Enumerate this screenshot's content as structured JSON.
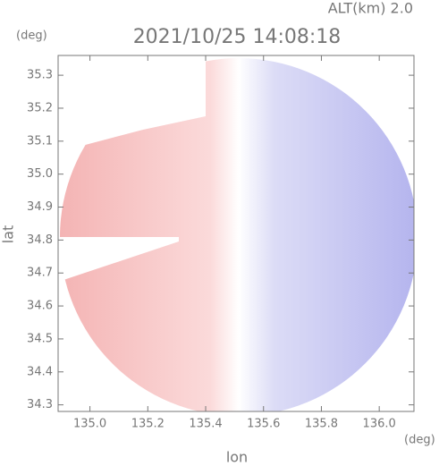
{
  "chart_data": {
    "type": "image",
    "title": "2021/10/25 14:08:18",
    "subtitle": "ALT(km) 2.0",
    "y_unit": "(deg)",
    "x_unit": "(deg)",
    "xlabel": "lon",
    "ylabel": "lat",
    "xlim": [
      134.89,
      136.12
    ],
    "xticks": [
      {
        "value": 135,
        "label": "135.0"
      },
      135.2,
      135.4,
      135.6,
      135.8,
      {
        "value": 136,
        "label": "136.0"
      }
    ],
    "ylim": [
      34.28,
      35.36
    ],
    "yticks": [
      34.3,
      34.4,
      34.5,
      34.6,
      34.7,
      34.8,
      34.9,
      {
        "value": 35,
        "label": "35.0"
      },
      35.1,
      35.2,
      35.3
    ],
    "grid": false
  }
}
